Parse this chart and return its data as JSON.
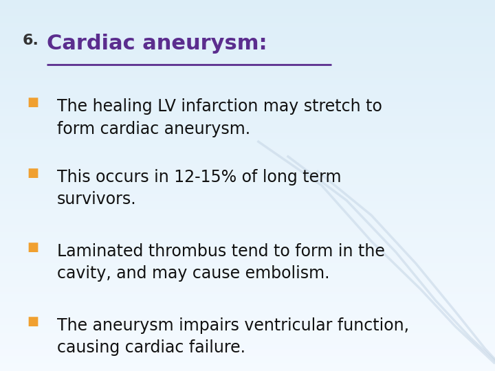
{
  "title_number": "6.",
  "title_text": "Cardiac aneurysm:",
  "title_color": "#5B2D8E",
  "title_fontsize": 22,
  "title_number_fontsize": 16,
  "bullet_color": "#F0A030",
  "bullet_text_color": "#111111",
  "bullet_fontsize": 17,
  "bullets": [
    "The healing LV infarction may stretch to\nform cardiac aneurysm.",
    "This occurs in 12-15% of long term\nsurvivors.",
    "Laminated thrombus tend to form in the\ncavity, and may cause embolism.",
    "The aneurysm impairs ventricular function,\ncausing cardiac failure."
  ],
  "bg_color_top": "#DDEEF8",
  "bg_color_bottom": "#F0F7FC",
  "wave_color": "#C5D5E5",
  "figsize": [
    7.2,
    5.4
  ],
  "dpi": 100
}
